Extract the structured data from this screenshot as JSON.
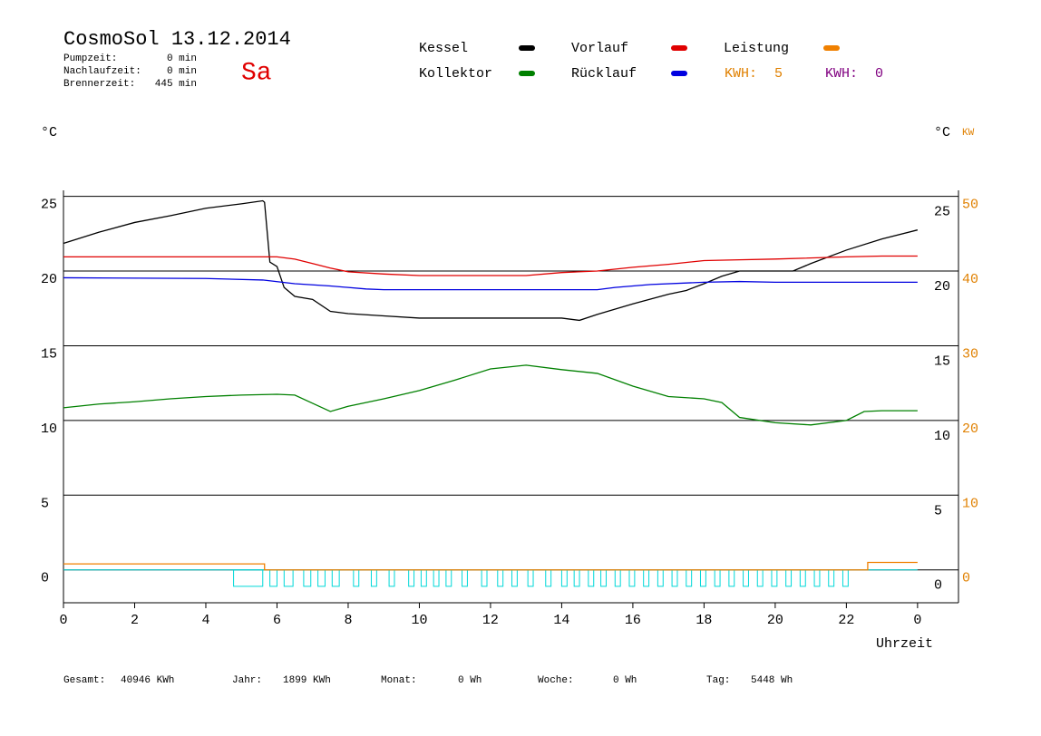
{
  "header": {
    "title": "CosmoSol 13.12.2014",
    "day": "Sa",
    "stats": [
      {
        "label": "Pumpzeit:",
        "value": "0 min"
      },
      {
        "label": "Nachlaufzeit:",
        "value": "0 min"
      },
      {
        "label": "Brennerzeit:",
        "value": "445 min"
      }
    ]
  },
  "chart_data": {
    "type": "line",
    "xlabel": "Uhrzeit",
    "ylabel": "°C",
    "y2label": "°C",
    "y2unit": "KW",
    "xlim": [
      0,
      25.15
    ],
    "xticks": [
      0,
      2,
      4,
      6,
      8,
      10,
      12,
      14,
      16,
      18,
      20,
      22,
      {
        "value": 24,
        "label": "0"
      }
    ],
    "ylim": [
      -2.2,
      25.4
    ],
    "yticks": [
      0,
      5,
      10,
      15,
      20,
      25
    ],
    "y2lim": [
      -4.4,
      50.8
    ],
    "y2ticks": [
      0,
      10,
      20,
      30,
      40,
      50
    ],
    "y2color": "#e08000",
    "series": [
      {
        "name": "Kessel",
        "color": "#000000",
        "x": [
          0,
          1,
          2,
          3,
          4,
          5,
          5.6,
          5.65,
          5.8,
          6,
          6.2,
          6.5,
          7,
          7.5,
          8,
          9,
          10,
          14,
          14.5,
          15,
          16,
          17,
          17.5,
          18,
          18.5,
          19,
          20.5,
          21,
          22,
          23,
          24
        ],
        "values": [
          21.85,
          22.6,
          23.25,
          23.7,
          24.2,
          24.5,
          24.7,
          24.6,
          20.6,
          20.3,
          18.9,
          18.3,
          18.1,
          17.3,
          17.15,
          17,
          16.85,
          16.85,
          16.7,
          17.1,
          17.8,
          18.45,
          18.7,
          19.15,
          19.65,
          20,
          20,
          20.5,
          21.4,
          22.15,
          22.75
        ]
      },
      {
        "name": "Vorlauf",
        "color": "#e00000",
        "x": [
          0,
          6,
          6.5,
          7,
          7.5,
          8,
          9,
          10,
          13,
          14,
          15,
          16,
          17,
          18,
          19,
          20,
          22,
          23,
          24
        ],
        "values": [
          20.95,
          20.95,
          20.8,
          20.5,
          20.2,
          19.95,
          19.8,
          19.7,
          19.7,
          19.9,
          20,
          20.25,
          20.45,
          20.7,
          20.75,
          20.8,
          20.95,
          21,
          21
        ]
      },
      {
        "name": "Leistung",
        "color": "#f08000",
        "axis": "y2",
        "x": [
          0,
          5.65,
          5.65,
          22.6,
          22.6,
          24
        ],
        "values": [
          0.8,
          0.8,
          0,
          0,
          1,
          1
        ]
      },
      {
        "name": "Kollektor",
        "color": "#008000",
        "x": [
          0,
          1,
          2,
          3,
          4,
          5,
          6,
          6.5,
          7,
          7.5,
          8,
          9,
          10,
          11,
          12,
          13,
          14,
          15,
          16,
          17,
          18,
          18.5,
          19,
          20,
          21,
          22,
          22.5,
          23,
          24
        ],
        "values": [
          10.85,
          11.1,
          11.25,
          11.45,
          11.6,
          11.7,
          11.75,
          11.7,
          11.15,
          10.6,
          10.95,
          11.45,
          12,
          12.7,
          13.45,
          13.7,
          13.4,
          13.15,
          12.3,
          11.6,
          11.45,
          11.2,
          10.2,
          9.85,
          9.7,
          10,
          10.6,
          10.65,
          10.65
        ]
      },
      {
        "name": "Rücklauf",
        "color": "#0000e0",
        "x": [
          0,
          4,
          5.6,
          6.5,
          7.5,
          8.5,
          9,
          15,
          15.5,
          16.5,
          18,
          19,
          20,
          24
        ],
        "values": [
          19.55,
          19.5,
          19.4,
          19.15,
          19,
          18.8,
          18.75,
          18.75,
          18.9,
          19.1,
          19.25,
          19.3,
          19.25,
          19.25
        ]
      }
    ],
    "kwh": [
      {
        "label": "KWH:",
        "value": 5,
        "color": "#e08000"
      },
      {
        "label": "KWH:",
        "value": 0,
        "color": "#800080"
      }
    ],
    "pump": {
      "color": "#00d8d8",
      "level": -1.1,
      "intervals": [
        [
          4.78,
          5.6
        ],
        [
          5.8,
          6
        ],
        [
          6.2,
          6.45
        ],
        [
          6.75,
          6.95
        ],
        [
          7.15,
          7.35
        ],
        [
          7.55,
          7.75
        ],
        [
          8.15,
          8.3
        ],
        [
          8.65,
          8.8
        ],
        [
          9.15,
          9.3
        ],
        [
          9.7,
          9.85
        ],
        [
          10.05,
          10.2
        ],
        [
          10.4,
          10.55
        ],
        [
          10.75,
          10.9
        ],
        [
          11.2,
          11.35
        ],
        [
          11.75,
          11.9
        ],
        [
          12.2,
          12.35
        ],
        [
          12.6,
          12.75
        ],
        [
          13.05,
          13.2
        ],
        [
          13.55,
          13.7
        ],
        [
          14,
          14.15
        ],
        [
          14.35,
          14.5
        ],
        [
          14.75,
          14.9
        ],
        [
          15.1,
          15.25
        ],
        [
          15.5,
          15.65
        ],
        [
          15.9,
          16.05
        ],
        [
          16.3,
          16.45
        ],
        [
          16.7,
          16.85
        ],
        [
          17.1,
          17.25
        ],
        [
          17.5,
          17.65
        ],
        [
          17.9,
          18.05
        ],
        [
          18.3,
          18.45
        ],
        [
          18.7,
          18.85
        ],
        [
          19.1,
          19.25
        ],
        [
          19.5,
          19.65
        ],
        [
          19.9,
          20.05
        ],
        [
          20.3,
          20.45
        ],
        [
          20.7,
          20.85
        ],
        [
          21.1,
          21.25
        ],
        [
          21.5,
          21.65
        ],
        [
          21.9,
          22.05
        ]
      ]
    }
  },
  "footer": [
    {
      "label": "Gesamt:",
      "value": "40946 KWh"
    },
    {
      "label": "Jahr:",
      "value": "1899 KWh"
    },
    {
      "label": "Monat:",
      "value": "0 Wh"
    },
    {
      "label": "Woche:",
      "value": "0 Wh"
    },
    {
      "label": "Tag:",
      "value": "5448 Wh"
    }
  ]
}
